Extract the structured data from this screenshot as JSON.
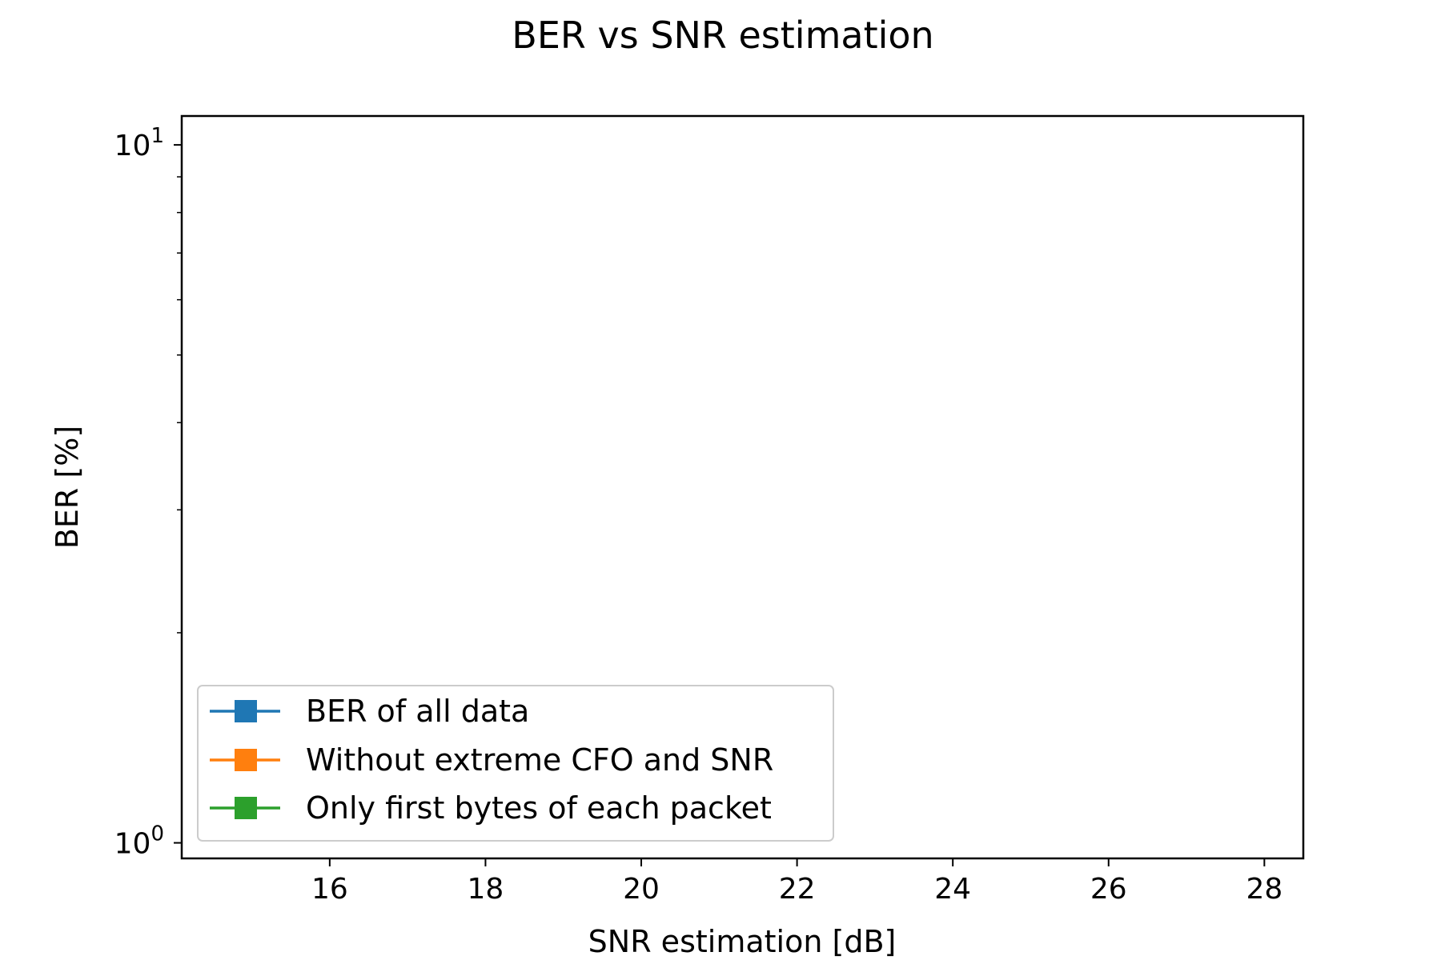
{
  "chart_data": {
    "type": "line",
    "title": "BER vs SNR estimation",
    "xlabel": "SNR estimation [dB]",
    "ylabel": "BER [%]",
    "xscale": "linear",
    "yscale": "log",
    "xlim": [
      14.1,
      28.5
    ],
    "ylim": [
      0.95,
      11.0
    ],
    "xticks": [
      16,
      18,
      20,
      22,
      24,
      26,
      28
    ],
    "xtick_labels": [
      "16",
      "18",
      "20",
      "22",
      "24",
      "26",
      "28"
    ],
    "yticks_major": [
      {
        "value": 1,
        "base": "10",
        "exp": "0"
      },
      {
        "value": 10,
        "base": "10",
        "exp": "1"
      }
    ],
    "yticks_minor": [
      2,
      3,
      4,
      5,
      6,
      7,
      8,
      9
    ],
    "grid": false,
    "legend_position": "lower-left",
    "series": [
      {
        "name": "BER of all data",
        "color": "#1f77b4",
        "marker": "square",
        "x": [],
        "y": []
      },
      {
        "name": "Without extreme CFO and SNR",
        "color": "#ff7f0e",
        "marker": "square",
        "x": [],
        "y": []
      },
      {
        "name": "Only first bytes of each packet",
        "color": "#2ca02c",
        "marker": "square",
        "x": [],
        "y": []
      }
    ]
  }
}
